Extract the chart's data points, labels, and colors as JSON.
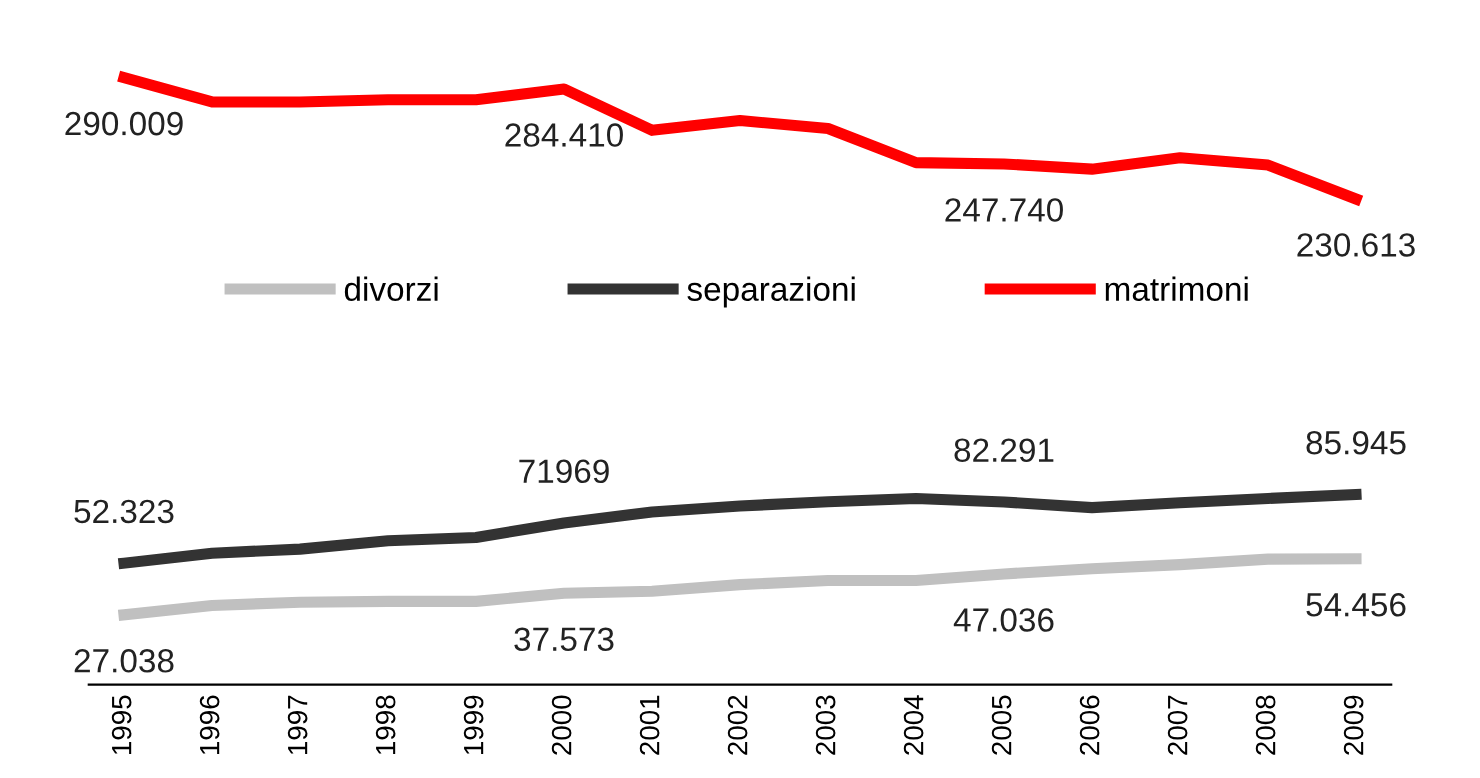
{
  "chart_data": {
    "type": "line",
    "categories": [
      "1995",
      "1996",
      "1997",
      "1998",
      "1999",
      "2000",
      "2001",
      "2002",
      "2003",
      "2004",
      "2005",
      "2006",
      "2007",
      "2008",
      "2009"
    ],
    "series": [
      {
        "name": "divorzi",
        "color": "#c0c0c0",
        "values": [
          27038,
          31600,
          33200,
          33600,
          33600,
          37573,
          38600,
          41800,
          43800,
          43800,
          47036,
          49600,
          51600,
          54300,
          54456
        ],
        "value_labels": [
          "27.038",
          null,
          null,
          null,
          null,
          "37.573",
          null,
          null,
          null,
          null,
          "47.036",
          null,
          null,
          null,
          "54.456"
        ]
      },
      {
        "name": "separazioni",
        "color": "#333333",
        "values": [
          52323,
          57200,
          59200,
          63300,
          64900,
          71969,
          77400,
          80300,
          82400,
          84000,
          82291,
          79500,
          81900,
          84000,
          85945
        ],
        "value_labels": [
          "52.323",
          null,
          null,
          null,
          null,
          "71969",
          null,
          null,
          null,
          null,
          "82.291",
          null,
          null,
          null,
          "85.945"
        ]
      },
      {
        "name": "matrimoni",
        "color": "#ff0000",
        "values": [
          290009,
          278100,
          278100,
          279200,
          279200,
          284410,
          264200,
          269000,
          265100,
          248400,
          247740,
          245200,
          250800,
          247200,
          230613
        ],
        "value_labels": [
          "290.009",
          null,
          null,
          null,
          null,
          "284.410",
          null,
          null,
          null,
          null,
          "247.740",
          null,
          null,
          null,
          "230.613"
        ]
      }
    ],
    "legend": "center",
    "grid": false,
    "marker": "none",
    "line_style": "solid"
  }
}
